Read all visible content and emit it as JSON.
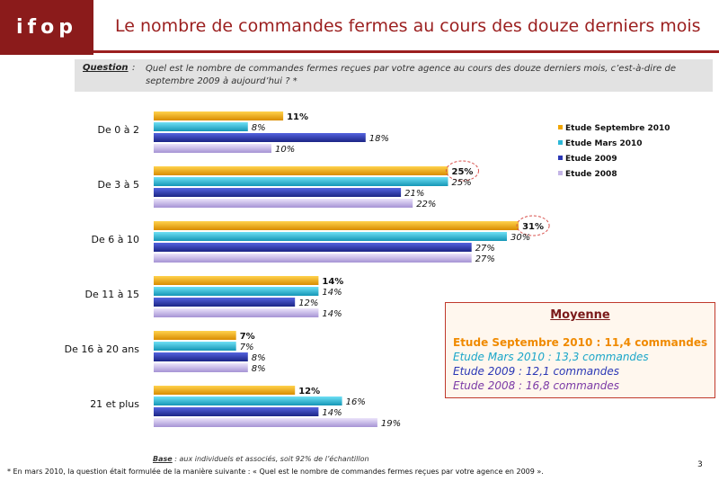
{
  "logo": {
    "text": "ifop"
  },
  "title": "Le nombre de commandes fermes au cours des douze derniers mois",
  "question": {
    "label": "Question",
    "colon": ":",
    "text": "Quel est le nombre de commandes fermes reçues par votre agence au cours des douze derniers mois, c’est-à-dire de septembre 2009 à aujourd’hui ? *"
  },
  "colors": {
    "series": [
      "#f0a500",
      "#2bb8d8",
      "#2b37b5",
      "#c4b5e6"
    ],
    "highlight_circle": "#d9534f",
    "brand": "#8b1b1b"
  },
  "chart_data": {
    "type": "bar",
    "orientation": "horizontal",
    "categories": [
      "De 0 à 2",
      "De 3 à 5",
      "De 6 à 10",
      "De 11 à 15",
      "De 16 à 20 ans",
      "21 et plus"
    ],
    "series": [
      {
        "name": "Etude Septembre 2010",
        "values": [
          11,
          25,
          31,
          14,
          7,
          12
        ],
        "labels": [
          "11%",
          "25%",
          "31%",
          "14%",
          "7%",
          "12%"
        ]
      },
      {
        "name": "Etude Mars 2010",
        "values": [
          8,
          25,
          30,
          14,
          7,
          16
        ],
        "labels": [
          "8%",
          "25%",
          "30%",
          "14%",
          "7%",
          "16%"
        ]
      },
      {
        "name": "Etude 2009",
        "values": [
          18,
          21,
          27,
          12,
          8,
          14
        ],
        "labels": [
          "18%",
          "21%",
          "27%",
          "12%",
          "8%",
          "14%"
        ]
      },
      {
        "name": "Etude 2008",
        "values": [
          10,
          22,
          27,
          14,
          8,
          19
        ],
        "labels": [
          "10%",
          "22%",
          "27%",
          "14%",
          "8%",
          "19%"
        ]
      }
    ],
    "highlighted": [
      {
        "category": "De 3 à 5",
        "series": "Etude Septembre 2010"
      },
      {
        "category": "De 6 à 10",
        "series": "Etude Septembre 2010"
      }
    ],
    "xlim": [
      0,
      40
    ],
    "legend": "top-right"
  },
  "average": {
    "title": "Moyenne",
    "lines": [
      "Etude Septembre 2010 : 11,4 commandes",
      "Etude Mars 2010 : 13,3 commandes",
      "Etude 2009 : 12,1 commandes",
      "Etude 2008 : 16,8 commandes"
    ]
  },
  "base": {
    "label": "Base",
    "text": " : aux individuels et associés, soit 92% de l’échantillon"
  },
  "footnote": "*   En mars 2010, la question était formulée de la manière suivante : « Quel est le nombre de commandes fermes reçues par votre agence en 2009 ».",
  "page_number": "3"
}
